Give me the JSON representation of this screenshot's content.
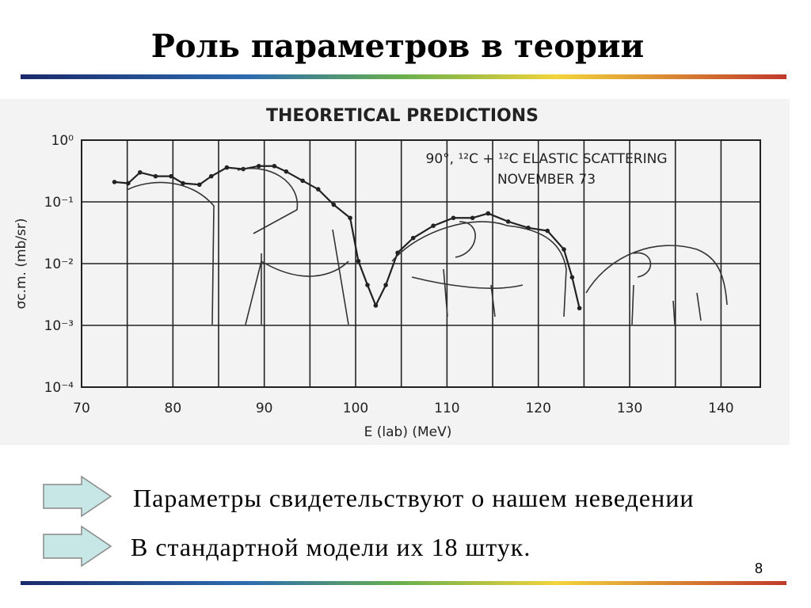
{
  "slide_title": "Роль параметров в теории",
  "bullets": [
    "Параметры свидетельствуют о нашем неведении",
    "В стандартной модели их 18 штук."
  ],
  "page_number": "8",
  "chart_data": {
    "type": "line",
    "title": "THEORETICAL PREDICTIONS",
    "annotation": [
      "90°, ¹²C + ¹²C ELASTIC SCATTERING",
      "NOVEMBER 73"
    ],
    "x_label": "E (lab) (MeV)",
    "y_label": "σc.m. (mb/sr)",
    "log_y": true,
    "grid": true,
    "color": "#222222",
    "xlim": [
      70,
      144.3
    ],
    "ylim": [
      0.0001,
      1
    ],
    "xticks": [
      70,
      80,
      90,
      100,
      110,
      120,
      130,
      140
    ],
    "yticks": [
      {
        "value": 1,
        "label": "10⁰"
      },
      {
        "value": 0.1,
        "label": "10⁻¹"
      },
      {
        "value": 0.01,
        "label": "10⁻²"
      },
      {
        "value": 0.001,
        "label": "10⁻³"
      },
      {
        "value": 0.0001,
        "label": "10⁻⁴"
      }
    ],
    "x": [
      73.6,
      75.1,
      76.4,
      78.1,
      79.8,
      81.1,
      82.9,
      84.2,
      85.9,
      87.7,
      89.4,
      91.1,
      92.4,
      94.2,
      95.9,
      97.6,
      99.4,
      100.3,
      101.3,
      102.2,
      103.3,
      104.6,
      106.3,
      108.5,
      110.7,
      112.8,
      114.5,
      116.7,
      118.9,
      121.0,
      122.8,
      123.7,
      124.5
    ],
    "values": [
      0.21,
      0.2,
      0.3,
      0.26,
      0.26,
      0.2,
      0.19,
      0.26,
      0.36,
      0.34,
      0.38,
      0.38,
      0.31,
      0.22,
      0.16,
      0.09,
      0.055,
      0.011,
      0.0045,
      0.0021,
      0.0045,
      0.015,
      0.026,
      0.041,
      0.055,
      0.055,
      0.065,
      0.048,
      0.038,
      0.034,
      0.017,
      0.006,
      0.0019
    ]
  }
}
